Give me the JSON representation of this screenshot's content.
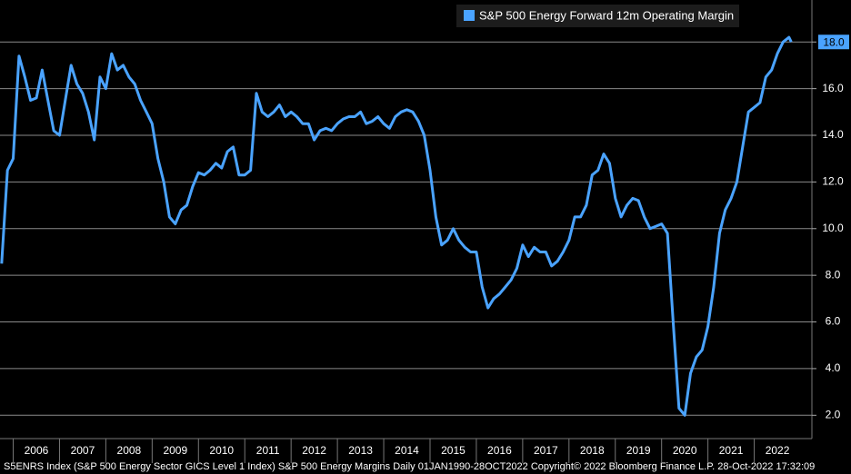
{
  "chart_data": {
    "type": "line",
    "series": [
      {
        "name": "S&P 500 Energy Forward 12m Operating Margin",
        "color": "#4aa3ff",
        "x": [
          2005.75,
          2005.875,
          2006.0,
          2006.125,
          2006.25,
          2006.375,
          2006.5,
          2006.625,
          2006.75,
          2006.875,
          2007.0,
          2007.125,
          2007.25,
          2007.375,
          2007.5,
          2007.625,
          2007.75,
          2007.875,
          2008.0,
          2008.125,
          2008.25,
          2008.375,
          2008.5,
          2008.625,
          2008.75,
          2008.875,
          2009.0,
          2009.125,
          2009.25,
          2009.375,
          2009.5,
          2009.625,
          2009.75,
          2009.875,
          2010.0,
          2010.125,
          2010.25,
          2010.375,
          2010.5,
          2010.625,
          2010.75,
          2010.875,
          2011.0,
          2011.125,
          2011.25,
          2011.375,
          2011.5,
          2011.625,
          2011.75,
          2011.875,
          2012.0,
          2012.125,
          2012.25,
          2012.375,
          2012.5,
          2012.625,
          2012.75,
          2012.875,
          2013.0,
          2013.125,
          2013.25,
          2013.375,
          2013.5,
          2013.625,
          2013.75,
          2013.875,
          2014.0,
          2014.125,
          2014.25,
          2014.375,
          2014.5,
          2014.625,
          2014.75,
          2014.875,
          2015.0,
          2015.125,
          2015.25,
          2015.375,
          2015.5,
          2015.625,
          2015.75,
          2015.875,
          2016.0,
          2016.125,
          2016.25,
          2016.375,
          2016.5,
          2016.625,
          2016.75,
          2016.875,
          2017.0,
          2017.125,
          2017.25,
          2017.375,
          2017.5,
          2017.625,
          2017.75,
          2017.875,
          2018.0,
          2018.125,
          2018.25,
          2018.375,
          2018.5,
          2018.625,
          2018.75,
          2018.875,
          2019.0,
          2019.125,
          2019.25,
          2019.375,
          2019.5,
          2019.625,
          2019.75,
          2019.875,
          2020.0,
          2020.125,
          2020.25,
          2020.375,
          2020.5,
          2020.625,
          2020.75,
          2020.875,
          2021.0,
          2021.125,
          2021.25,
          2021.375,
          2021.5,
          2021.625,
          2021.75,
          2021.875,
          2022.0,
          2022.125,
          2022.25,
          2022.375,
          2022.5,
          2022.625,
          2022.75,
          2022.8
        ],
        "values": [
          8.5,
          12.5,
          13.0,
          17.4,
          16.5,
          15.5,
          15.6,
          16.8,
          15.5,
          14.2,
          14.0,
          15.5,
          17.0,
          16.2,
          15.8,
          15.0,
          13.8,
          16.5,
          16.0,
          17.5,
          16.8,
          17.0,
          16.5,
          16.2,
          15.5,
          15.0,
          14.5,
          13.0,
          12.0,
          10.5,
          10.2,
          10.8,
          11.0,
          11.8,
          12.4,
          12.3,
          12.5,
          12.8,
          12.6,
          13.3,
          13.5,
          12.3,
          12.3,
          12.5,
          15.8,
          15.0,
          14.8,
          15.0,
          15.3,
          14.8,
          15.0,
          14.8,
          14.5,
          14.5,
          13.8,
          14.2,
          14.3,
          14.2,
          14.5,
          14.7,
          14.8,
          14.8,
          15.0,
          14.5,
          14.6,
          14.8,
          14.5,
          14.3,
          14.8,
          15.0,
          15.1,
          15.0,
          14.6,
          14.0,
          12.5,
          10.5,
          9.3,
          9.5,
          10.0,
          9.5,
          9.2,
          9.0,
          9.0,
          7.5,
          6.6,
          7.0,
          7.2,
          7.5,
          7.8,
          8.3,
          9.3,
          8.8,
          9.2,
          9.0,
          9.0,
          8.4,
          8.6,
          9.0,
          9.5,
          10.5,
          10.5,
          11.0,
          12.3,
          12.5,
          13.2,
          12.8,
          11.3,
          10.5,
          11.0,
          11.3,
          11.2,
          10.5,
          10.0,
          10.1,
          10.2,
          9.8,
          6.0,
          2.3,
          2.0,
          3.8,
          4.5,
          4.8,
          5.8,
          7.5,
          9.8,
          10.8,
          11.3,
          12.0,
          13.5,
          15.0,
          15.2,
          15.4,
          16.5,
          16.8,
          17.5,
          18.0,
          18.2,
          18.0
        ]
      }
    ],
    "xlim": [
      2005.715,
      2023.245
    ],
    "xticks": [
      2006,
      2007,
      2008,
      2009,
      2010,
      2011,
      2012,
      2013,
      2014,
      2015,
      2016,
      2017,
      2018,
      2019,
      2020,
      2021,
      2022
    ],
    "ylim": [
      1.0,
      19.8
    ],
    "yticks": [
      {
        "value": 2,
        "label": "2.0"
      },
      {
        "value": 4,
        "label": "4.0"
      },
      {
        "value": 6,
        "label": "6.0"
      },
      {
        "value": 8,
        "label": "8.0"
      },
      {
        "value": 10,
        "label": "10.0"
      },
      {
        "value": 12,
        "label": "12.0"
      },
      {
        "value": 14,
        "label": "14.0"
      },
      {
        "value": 16,
        "label": "16.0"
      },
      {
        "value": 18,
        "label": "18.0"
      }
    ],
    "highlight_tick": {
      "value": 18,
      "label": "18.0"
    },
    "grid": true,
    "legend": "top-right",
    "footer": "S5ENRS Index (S&P 500 Energy Sector GICS Level 1 Index) S&P 500 Energy Margins  Daily 01JAN1990-28OCT2022  Copyright© 2022 Bloomberg Finance L.P.  28-Oct-2022 17:32:09"
  }
}
